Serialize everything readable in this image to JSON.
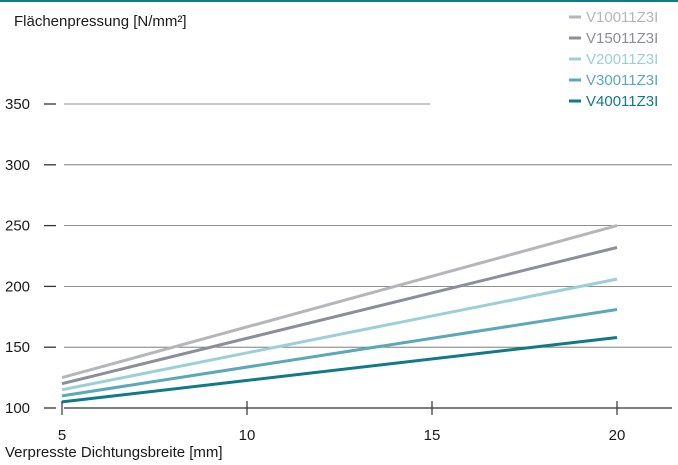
{
  "chart_data": {
    "type": "line",
    "ylabel": "Flächenpressung [N/mm²]",
    "xlabel": "Verpresste Dichtungsbreite [mm]",
    "xlim": [
      5,
      20
    ],
    "ylim": [
      100,
      350
    ],
    "xticks": [
      "5",
      "10",
      "15",
      "20"
    ],
    "yticks": [
      "100",
      "150",
      "200",
      "250",
      "300",
      "350"
    ],
    "grid": false,
    "legend_position": "top-right",
    "series": [
      {
        "name": "V10011Z3I",
        "color": "#b4b6bc",
        "x": [
          5,
          20
        ],
        "y": [
          125,
          250
        ]
      },
      {
        "name": "V15011Z3I",
        "color": "#8c8f99",
        "x": [
          5,
          20
        ],
        "y": [
          120,
          232
        ]
      },
      {
        "name": "V20011Z3I",
        "color": "#9ccfd8",
        "x": [
          5,
          20
        ],
        "y": [
          115,
          206
        ]
      },
      {
        "name": "V30011Z3I",
        "color": "#5ba8b8",
        "x": [
          5,
          20
        ],
        "y": [
          110,
          181
        ]
      },
      {
        "name": "V40011Z3I",
        "color": "#0f7a88",
        "x": [
          5,
          20
        ],
        "y": [
          105,
          158
        ]
      }
    ]
  },
  "style": {
    "top_rule_color": "#0f7a88",
    "axis_color": "#333333"
  }
}
